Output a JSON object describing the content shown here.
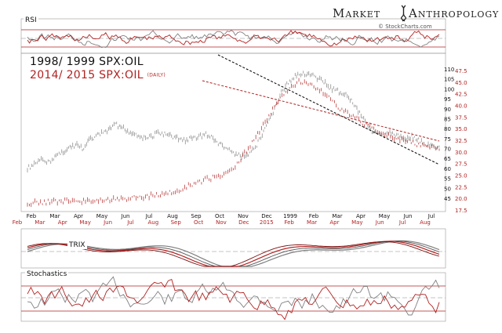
{
  "brand": {
    "title_part1": "Market",
    "title_part2": "Anthropology",
    "logo_icon": "dna-helix-icon",
    "credit": "© StockCharts.com"
  },
  "panels": {
    "rsi_label": "RSI",
    "trix_label": "TRIX",
    "stochastics_label": "Stochastics"
  },
  "legend": {
    "series_1998": "1998/ 1999 SPX:OIL",
    "series_2014": "2014/ 2015 SPX:OIL",
    "series_2014_note": "(DAILY)"
  },
  "colors": {
    "series_1998": "#808080",
    "series_2014": "#b22222",
    "trendline_black": "#000000",
    "trendline_red": "#b22222"
  },
  "chart_data": {
    "type": "line",
    "axes": {
      "y_right_black_ticks": [
        "110",
        "105",
        "100",
        "95",
        "90",
        "85",
        "80",
        "75",
        "70",
        "65",
        "60",
        "55",
        "50",
        "45"
      ],
      "y_right_red_ticks": [
        "47.5",
        "45.0",
        "42.5",
        "40.0",
        "37.5",
        "35.0",
        "32.5",
        "30.0",
        "27.5",
        "25.0",
        "22.5",
        "20.0",
        "17.5"
      ],
      "x_black_ticks": [
        "Feb",
        "Mar",
        "Apr",
        "May",
        "Jun",
        "Jul",
        "Aug",
        "Sep",
        "Oct",
        "Nov",
        "Dec",
        "1999",
        "Feb",
        "Mar",
        "Apr",
        "May",
        "Jun",
        "Jul"
      ],
      "x_red_ticks": [
        "Feb",
        "Mar",
        "Apr",
        "May",
        "Jun",
        "Jul",
        "Aug",
        "Sep",
        "Oct",
        "Nov",
        "Dec",
        "2015",
        "Feb",
        "Mar",
        "Apr",
        "May",
        "Jun",
        "Jul",
        "Aug"
      ]
    },
    "series": [
      {
        "name": "1998/ 1999 SPX:OIL",
        "color": "#808080",
        "y_black": [
          60,
          62,
          64,
          63,
          66,
          68,
          70,
          72,
          70,
          74,
          76,
          78,
          80,
          82,
          80,
          78,
          77,
          75,
          76,
          78,
          77,
          76,
          75,
          74,
          75,
          76,
          77,
          75,
          72,
          70,
          68,
          66,
          67,
          70,
          75,
          82,
          90,
          98,
          103,
          107,
          108,
          107,
          106,
          104,
          101,
          99,
          98,
          95,
          90,
          85,
          80,
          77,
          76,
          78,
          76,
          75,
          76,
          74,
          72,
          71,
          70
        ]
      },
      {
        "name": "2014/ 2015 SPX:OIL",
        "color": "#b22222",
        "y_red": [
          19.0,
          19.1,
          19.2,
          19.3,
          19.4,
          19.5,
          19.5,
          19.6,
          19.7,
          19.8,
          19.9,
          20.1,
          20.3,
          20.5,
          20.8,
          21.2,
          21.8,
          22.5,
          23.3,
          24.0,
          24.6,
          25.3,
          26.5,
          29.0,
          32.0,
          35.0,
          38.5,
          41.5,
          44.0,
          45.0,
          44.5,
          43.5,
          42.0,
          40.0,
          38.5,
          37.5,
          36.0,
          35.0,
          34.0,
          33.0,
          32.5,
          32.0,
          31.5,
          31.0,
          30.5
        ]
      }
    ],
    "trendlines": [
      {
        "name": "black-downtrend",
        "color": "#000000",
        "from_label": "Dec 1998",
        "to_label": "Aug 1999"
      },
      {
        "name": "red-downtrend",
        "color": "#b22222",
        "from_label": "Nov 2014",
        "to_label": "Aug 2015"
      }
    ],
    "indicator_panels": [
      "RSI",
      "TRIX",
      "Stochastics"
    ]
  }
}
